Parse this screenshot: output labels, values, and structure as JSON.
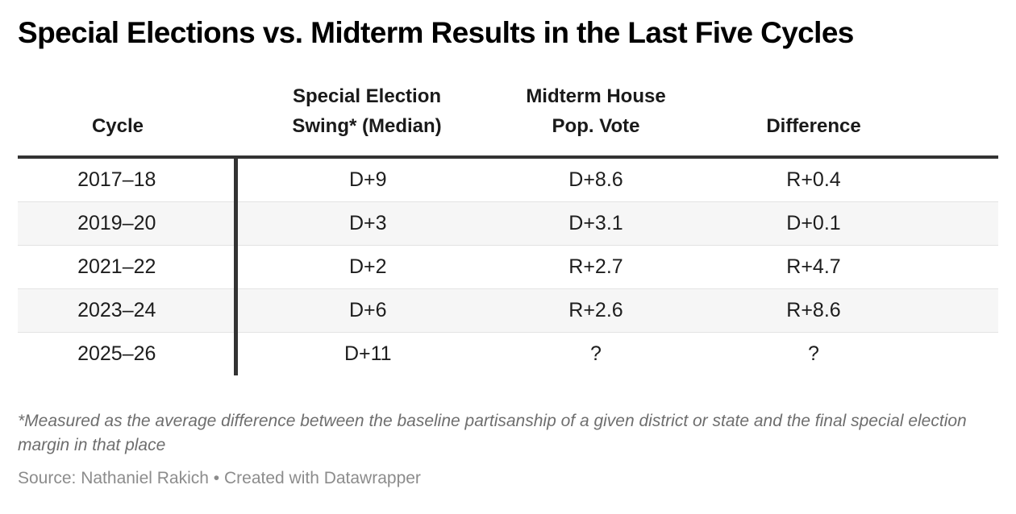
{
  "title": "Special Elections vs. Midterm Results in the Last Five Cycles",
  "table": {
    "column_headers": [
      "Cycle",
      "Special Election\nSwing* (Median)",
      "Midterm House\nPop. Vote",
      "Difference"
    ]
  },
  "footnote": "*Measured as the average difference between the baseline partisanship of a given district or state and the final special election margin in that place",
  "source": "Source: Nathaniel Rakich • Created with Datawrapper",
  "colors": {
    "title_text": "#000000",
    "header_text": "#1a1a1a",
    "body_text": "#1d1d1d",
    "heavy_rule": "#333333",
    "row_stripe": "#f6f6f6",
    "row_separator": "#e3e3e3",
    "footnote_text": "#6e6e6e",
    "source_text": "#8c8c8c",
    "background": "#ffffff"
  },
  "chart_data": {
    "type": "table",
    "title": "Special Elections vs. Midterm Results in the Last Five Cycles",
    "columns": [
      "Cycle",
      "Special Election Swing* (Median)",
      "Midterm House Pop. Vote",
      "Difference"
    ],
    "rows": [
      [
        "2017–18",
        "D+9",
        "D+8.6",
        "R+0.4"
      ],
      [
        "2019–20",
        "D+3",
        "D+3.1",
        "D+0.1"
      ],
      [
        "2021–22",
        "D+2",
        "R+2.7",
        "R+4.7"
      ],
      [
        "2023–24",
        "D+6",
        "R+2.6",
        "R+8.6"
      ],
      [
        "2025–26",
        "D+11",
        "?",
        "?"
      ]
    ],
    "footnote": "*Measured as the average difference between the baseline partisanship of a given district or state and the final special election margin in that place",
    "source": "Source: Nathaniel Rakich • Created with Datawrapper",
    "layout_hints": {
      "striped_rows": true,
      "heavy_rule_below_header": true,
      "vertical_rule_after_first_column": true,
      "cell_alignment": "center"
    }
  }
}
